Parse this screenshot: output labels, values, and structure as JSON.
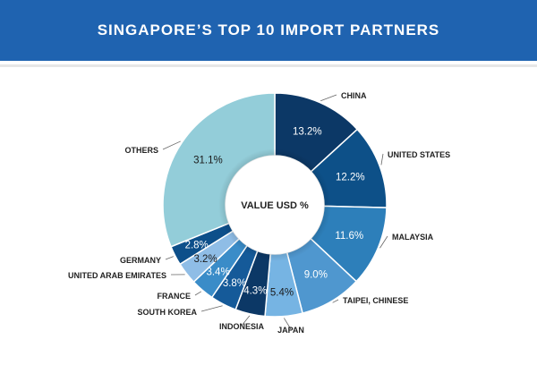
{
  "header": {
    "title": "SINGAPORE’S TOP 10 IMPORT PARTNERS"
  },
  "colors": {
    "header_bg": "#1f63b0",
    "others": "#93cdd9"
  },
  "chart_data": {
    "type": "pie",
    "style": "donut",
    "center_label": "VALUE USD %",
    "slices": [
      {
        "label": "CHINA",
        "value": 13.2,
        "display": "13.2%",
        "color": "#0c3866"
      },
      {
        "label": "UNITED STATES",
        "value": 12.2,
        "display": "12.2%",
        "color": "#0d5088"
      },
      {
        "label": "MALAYSIA",
        "value": 11.6,
        "display": "11.6%",
        "color": "#2d7fba"
      },
      {
        "label": "TAIPEI, CHINESE",
        "value": 9.0,
        "display": "9.0%",
        "color": "#4f97cf"
      },
      {
        "label": "JAPAN",
        "value": 5.4,
        "display": "5.4%",
        "color": "#76b4e3"
      },
      {
        "label": "INDONESIA",
        "value": 4.3,
        "display": "4.3%",
        "color": "#0c3866"
      },
      {
        "label": "SOUTH KOREA",
        "value": 3.8,
        "display": "3.8%",
        "color": "#155a99"
      },
      {
        "label": "FRANCE",
        "value": 3.4,
        "display": "3.4%",
        "color": "#3a8cc8"
      },
      {
        "label": "UNITED ARAB EMIRATES",
        "value": 3.2,
        "display": "3.2%",
        "color": "#8fbde6"
      },
      {
        "label": "GERMANY",
        "value": 2.8,
        "display": "2.8%",
        "color": "#0d4f8a"
      },
      {
        "label": "OTHERS",
        "value": 31.1,
        "display": "31.1%",
        "color": "#93cdd9"
      }
    ]
  }
}
